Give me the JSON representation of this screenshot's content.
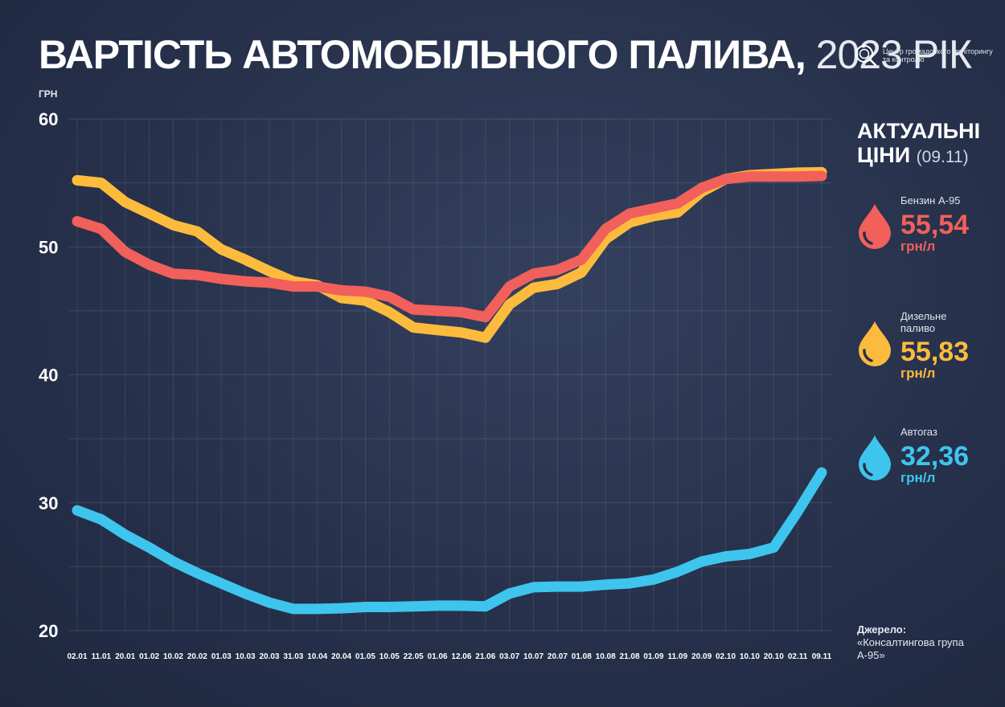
{
  "header": {
    "title_main": "ВАРТІСТЬ АВТОМОБІЛЬНОГО ПАЛИВА,",
    "title_year": "2023 РІК",
    "logo_text": "Центр громадського моніторингу та контролю",
    "logo_icon": "magnifier-icon"
  },
  "side_panel": {
    "title_line1": "АКТУАЛЬНІ",
    "title_line2": "ЦІНИ",
    "date": "(09.11)",
    "items": [
      {
        "name": "Бензин А-95",
        "value": "55,54",
        "unit": "грн/л",
        "color": "#f1605a",
        "icon": "fuel-drop-icon"
      },
      {
        "name": "Дизельне паливо",
        "value": "55,83",
        "unit": "грн/л",
        "color": "#fdbb3e",
        "icon": "fuel-drop-icon"
      },
      {
        "name": "Автогаз",
        "value": "32,36",
        "unit": "грн/л",
        "color": "#3ec5ee",
        "icon": "fuel-drop-icon"
      }
    ]
  },
  "source": {
    "label": "Джерело:",
    "text": "«Консалтингова група А-95»"
  },
  "chart_data": {
    "type": "line",
    "ylabel": "ГРН",
    "ylim": [
      20,
      60
    ],
    "yticks": [
      20,
      30,
      40,
      50,
      60
    ],
    "grid": true,
    "categories": [
      "02.01",
      "11.01",
      "20.01",
      "01.02",
      "10.02",
      "20.02",
      "01.03",
      "10.03",
      "20.03",
      "31.03",
      "10.04",
      "20.04",
      "01.05",
      "10.05",
      "22.05",
      "01.06",
      "12.06",
      "21.06",
      "03.07",
      "10.07",
      "20.07",
      "01.08",
      "10.08",
      "21.08",
      "01.09",
      "11.09",
      "20.09",
      "02.10",
      "10.10",
      "20.10",
      "02.11",
      "09.11"
    ],
    "series": [
      {
        "name": "Дизельне паливо",
        "color": "#fdbb3e",
        "values": [
          55.2,
          55.0,
          53.5,
          52.6,
          51.7,
          51.2,
          49.8,
          49.0,
          48.1,
          47.3,
          47.0,
          46.0,
          45.8,
          44.9,
          43.7,
          43.5,
          43.3,
          42.9,
          45.5,
          46.8,
          47.1,
          48.0,
          50.6,
          51.9,
          52.4,
          52.7,
          54.3,
          55.3,
          55.6,
          55.7,
          55.8,
          55.83
        ]
      },
      {
        "name": "Бензин А-95",
        "color": "#f1605a",
        "values": [
          52.0,
          51.4,
          49.6,
          48.6,
          47.9,
          47.8,
          47.5,
          47.3,
          47.2,
          46.9,
          46.9,
          46.6,
          46.5,
          46.1,
          45.1,
          45.0,
          44.9,
          44.5,
          46.9,
          47.9,
          48.2,
          49.0,
          51.4,
          52.6,
          53.0,
          53.4,
          54.6,
          55.3,
          55.5,
          55.5,
          55.5,
          55.54
        ]
      },
      {
        "name": "Автогаз",
        "color": "#3ec5ee",
        "values": [
          29.4,
          28.7,
          27.5,
          26.5,
          25.4,
          24.5,
          23.7,
          22.9,
          22.2,
          21.7,
          21.7,
          21.75,
          21.85,
          21.85,
          21.9,
          21.95,
          21.95,
          21.9,
          22.9,
          23.4,
          23.45,
          23.45,
          23.6,
          23.7,
          24.0,
          24.6,
          25.4,
          25.8,
          26.0,
          26.5,
          29.3,
          32.36
        ]
      }
    ]
  }
}
